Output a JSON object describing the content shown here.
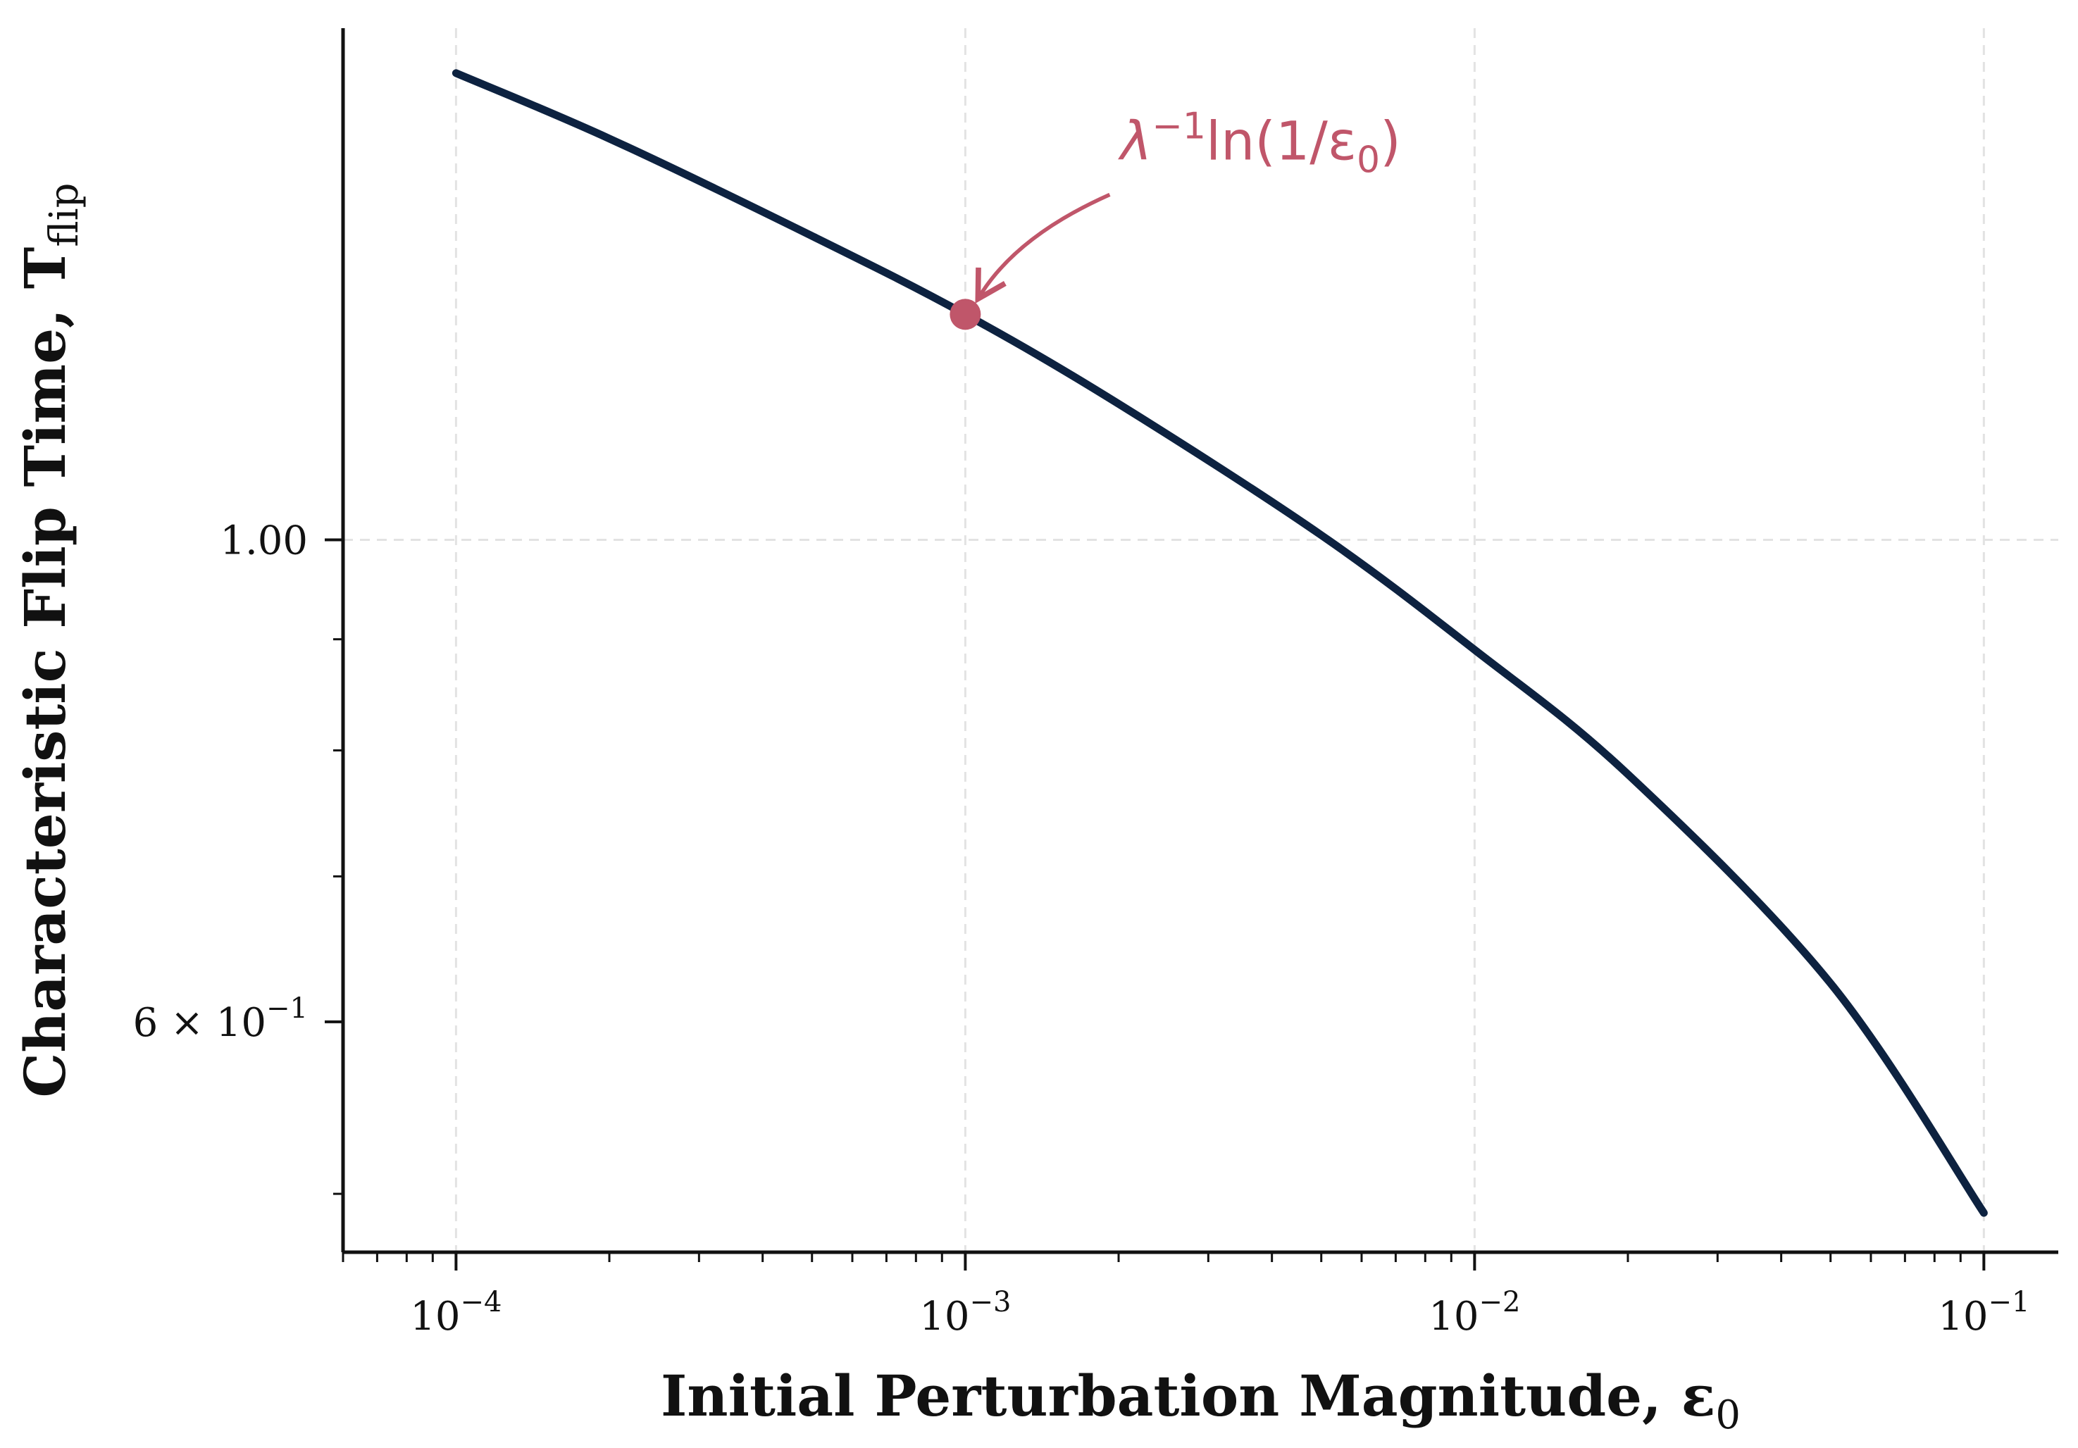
{
  "chart_data": {
    "type": "line",
    "xlabel": "Initial Perturbation Magnitude, ε",
    "xlabel_sub": "0",
    "ylabel": "Characteristic Flip Time, T",
    "ylabel_sub": "flip",
    "x_scale": "log",
    "y_scale": "log",
    "xlim": [
      6e-05,
      0.14
    ],
    "ylim": [
      0.47,
      1.72
    ],
    "x_ticks": [
      {
        "value": 0.0001,
        "base": "10",
        "exp": "−4"
      },
      {
        "value": 0.001,
        "base": "10",
        "exp": "−3"
      },
      {
        "value": 0.01,
        "base": "10",
        "exp": "−2"
      },
      {
        "value": 0.1,
        "base": "10",
        "exp": "−1"
      }
    ],
    "y_ticks": [
      {
        "value": 1.0,
        "label": "1.00"
      },
      {
        "value": 0.6,
        "prefix": "6 × 10",
        "exp": "−1"
      }
    ],
    "y_minor_ticks": [
      0.5,
      0.7,
      0.8,
      0.9
    ],
    "grid": true,
    "series": [
      {
        "color": "#0d2240",
        "x": [
          0.0001,
          0.0002,
          0.0005,
          0.001,
          0.002,
          0.005,
          0.01,
          0.02,
          0.05,
          0.1
        ],
        "y": [
          1.64,
          1.53,
          1.38,
          1.27,
          1.155,
          1.005,
          0.89,
          0.78,
          0.625,
          0.49
        ]
      }
    ],
    "annotation": {
      "text": "λ",
      "sup": "−1",
      "text2": "ln(1/ε",
      "sub": "0",
      "text3": ")",
      "point": {
        "x": 0.001,
        "y": 1.27
      },
      "color": "#c0566a"
    }
  }
}
